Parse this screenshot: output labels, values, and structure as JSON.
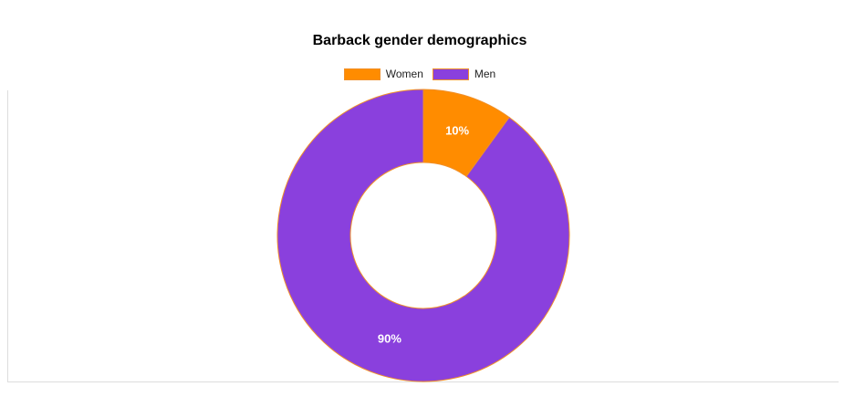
{
  "chart_data": {
    "type": "pie",
    "title": "Barback gender demographics",
    "categories": [
      "Women",
      "Men"
    ],
    "values": [
      10,
      90
    ],
    "value_labels": [
      "10%",
      "90%"
    ],
    "colors": [
      "#ff8c00",
      "#8a40dd"
    ],
    "slice_border_color": "#f0902a",
    "style": "doughnut",
    "legend": "top-center"
  }
}
